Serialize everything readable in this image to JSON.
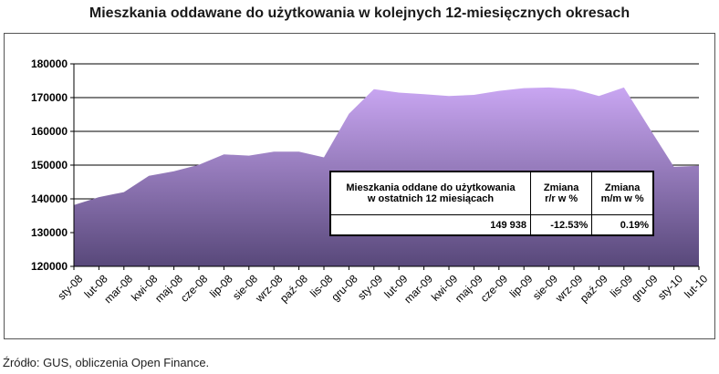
{
  "title": "Mieszkania oddawane do użytkowania w kolejnych 12-miesięcznych okresach",
  "source": "Źródło: GUS, obliczenia Open Finance.",
  "colors": {
    "area_top": "#c9a6f2",
    "area_bottom": "#58487a",
    "grid": "#000000",
    "frame": "#555555"
  },
  "chart_data": {
    "type": "area",
    "categories": [
      "sty-08",
      "lut-08",
      "mar-08",
      "kwi-08",
      "maj-08",
      "cze-08",
      "lip-08",
      "sie-08",
      "wrz-08",
      "paź-08",
      "lis-08",
      "gru-08",
      "sty-09",
      "lut-09",
      "mar-09",
      "kwi-09",
      "maj-09",
      "cze-09",
      "lip-09",
      "sie-09",
      "wrz-09",
      "paź-09",
      "lis-09",
      "gru-09",
      "sty-10",
      "lut-10"
    ],
    "values": [
      138200,
      140500,
      142000,
      146800,
      148200,
      150100,
      153200,
      152800,
      154000,
      154000,
      152300,
      165200,
      172500,
      171500,
      171000,
      170500,
      170800,
      172000,
      172800,
      173000,
      172500,
      170500,
      173000,
      161200,
      149500,
      149800
    ],
    "ylim": [
      120000,
      180000
    ],
    "yticks": [
      "120000",
      "130000",
      "140000",
      "150000",
      "160000",
      "170000",
      "180000"
    ],
    "grid": true
  },
  "table": {
    "headers": [
      "Mieszkania oddane do użytkowania w ostatnich 12 miesiącach",
      "Zmiana r/r w %",
      "Zmiana m/m w %"
    ],
    "header_lines": [
      [
        "Mieszkania oddane do użytkowania",
        "w ostatnich 12 miesiącach"
      ],
      [
        "Zmiana",
        "r/r w %"
      ],
      [
        "Zmiana",
        "m/m w %"
      ]
    ],
    "values": [
      "149 938",
      "-12.53%",
      "0.19%"
    ]
  }
}
